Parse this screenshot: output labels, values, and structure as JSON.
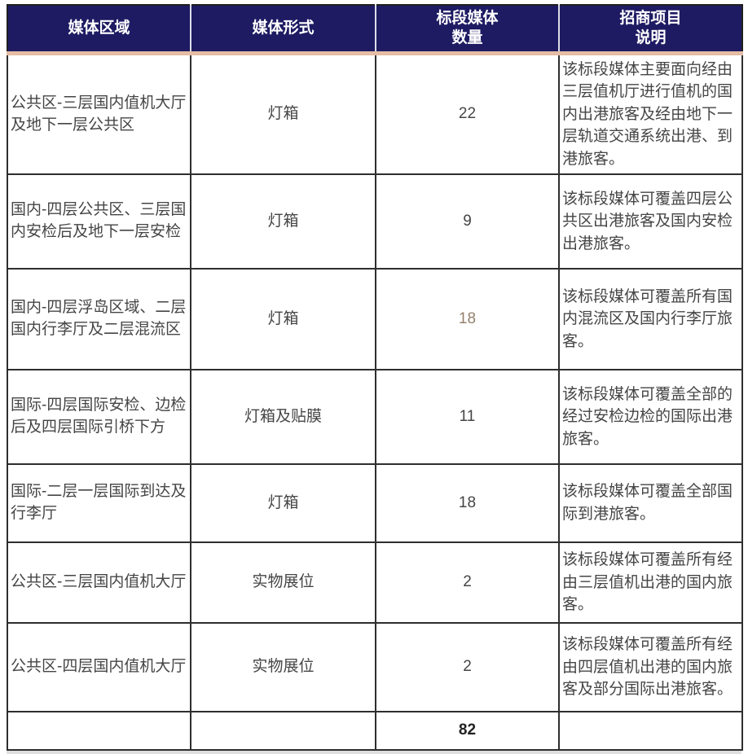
{
  "colors": {
    "header_bg": "#1e1b63",
    "header_text": "#ffffff",
    "accent_under_header": "#e4bda4",
    "body_text": "#454545",
    "highlight_count": "#95806d"
  },
  "table": {
    "columns": [
      {
        "key": "region",
        "label": "媒体区域"
      },
      {
        "key": "format",
        "label": "媒体形式"
      },
      {
        "key": "count",
        "label": "标段媒体\n数量"
      },
      {
        "key": "description",
        "label": "招商项目\n说明"
      }
    ],
    "rows": [
      {
        "region": "公共区-三层国内值机大厅及地下一层公共区",
        "format": "灯箱",
        "count": "22",
        "count_highlight": false,
        "description": "该标段媒体主要面向经由三层值机厅进行值机的国内出港旅客及经由地下一层轨道交通系统出港、到港旅客。"
      },
      {
        "region": "国内-四层公共区、三层国内安检后及地下一层安检",
        "format": "灯箱",
        "count": "9",
        "count_highlight": false,
        "description": "该标段媒体可覆盖四层公共区出港旅客及国内安检出港旅客。"
      },
      {
        "region": "国内-四层浮岛区域、二层国内行李厅及二层混流区",
        "format": "灯箱",
        "count": "18",
        "count_highlight": true,
        "description": "该标段媒体可覆盖所有国内混流区及国内行李厅旅客。"
      },
      {
        "region": "国际-四层国际安检、边检后及四层国际引桥下方",
        "format": "灯箱及贴膜",
        "count": "11",
        "count_highlight": false,
        "description": "该标段媒体可覆盖全部的经过安检边检的国际出港旅客。"
      },
      {
        "region": "国际-二层一层国际到达及行李厅",
        "format": "灯箱",
        "count": "18",
        "count_highlight": false,
        "description": "该标段媒体可覆盖全部国际到港旅客。"
      },
      {
        "region": "公共区-三层国内值机大厅",
        "format": "实物展位",
        "count": "2",
        "count_highlight": false,
        "description": "该标段媒体可覆盖所有经由三层值机出港的国内旅客。"
      },
      {
        "region": "公共区-四层国内值机大厅",
        "format": "实物展位",
        "count": "2",
        "count_highlight": false,
        "description": "该标段媒体可覆盖所有经由四层值机出港的国内旅客及部分国际出港旅客。"
      }
    ],
    "total_row": {
      "region": "",
      "format": "",
      "count": "82",
      "description": ""
    }
  }
}
